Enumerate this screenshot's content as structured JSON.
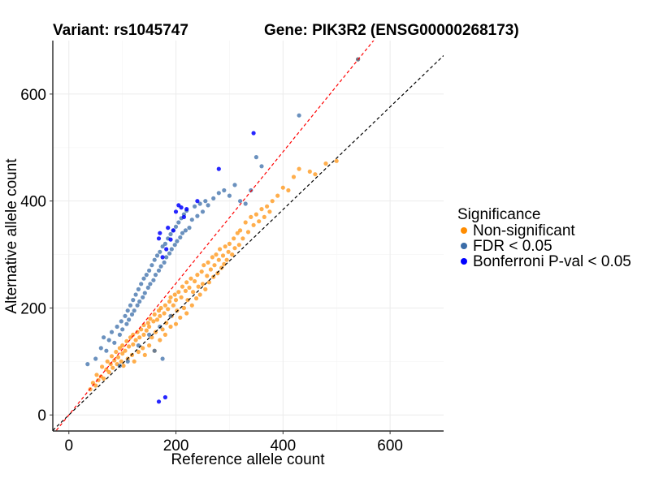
{
  "header": {
    "variant": "Variant: rs1045747",
    "gene": "Gene: PIK3R2 (ENSG00000268173)"
  },
  "chart_data": {
    "type": "scatter",
    "title": "Variant: rs1045747",
    "subtitle": "Gene: PIK3R2 (ENSG00000268173)",
    "xlabel": "Reference allele count",
    "ylabel": "Alternative allele count",
    "xlim": [
      -30,
      700
    ],
    "ylim": [
      -30,
      700
    ],
    "x_ticks": [
      0,
      200,
      400,
      600
    ],
    "y_ticks": [
      0,
      200,
      400,
      600
    ],
    "grid": true,
    "legend_position": "right",
    "legend_title": "Significance",
    "reference_lines": [
      {
        "style": "dashed",
        "color": "#000000",
        "slope": 0.96,
        "intercept": 0
      },
      {
        "style": "dashed",
        "color": "#ff0000",
        "slope": 1.23,
        "intercept": 0
      }
    ],
    "series": [
      {
        "name": "Non-significant",
        "color": "#ff8c00",
        "opacity": 0.7,
        "approx_count": 1400,
        "points_note_free": true,
        "points": [
          [
            40,
            48
          ],
          [
            45,
            60
          ],
          [
            50,
            55
          ],
          [
            52,
            75
          ],
          [
            55,
            65
          ],
          [
            60,
            72
          ],
          [
            62,
            90
          ],
          [
            65,
            68
          ],
          [
            70,
            85
          ],
          [
            72,
            100
          ],
          [
            75,
            80
          ],
          [
            78,
            95
          ],
          [
            80,
            110
          ],
          [
            82,
            88
          ],
          [
            85,
            102
          ],
          [
            88,
            118
          ],
          [
            90,
            95
          ],
          [
            92,
            108
          ],
          [
            95,
            125
          ],
          [
            98,
            100
          ],
          [
            100,
            115
          ],
          [
            100,
            130
          ],
          [
            102,
            92
          ],
          [
            105,
            120
          ],
          [
            108,
            138
          ],
          [
            110,
            105
          ],
          [
            112,
            128
          ],
          [
            115,
            145
          ],
          [
            118,
            112
          ],
          [
            120,
            132
          ],
          [
            120,
            150
          ],
          [
            122,
            100
          ],
          [
            125,
            140
          ],
          [
            128,
            155
          ],
          [
            130,
            118
          ],
          [
            132,
            145
          ],
          [
            135,
            160
          ],
          [
            138,
            125
          ],
          [
            140,
            150
          ],
          [
            140,
            168
          ],
          [
            142,
            112
          ],
          [
            145,
            158
          ],
          [
            148,
            172
          ],
          [
            150,
            130
          ],
          [
            150,
            165
          ],
          [
            152,
            180
          ],
          [
            155,
            145
          ],
          [
            158,
            175
          ],
          [
            160,
            120
          ],
          [
            160,
            188
          ],
          [
            162,
            155
          ],
          [
            165,
            178
          ],
          [
            168,
            195
          ],
          [
            170,
            140
          ],
          [
            170,
            185
          ],
          [
            172,
            200
          ],
          [
            175,
            160
          ],
          [
            178,
            190
          ],
          [
            180,
            150
          ],
          [
            180,
            205
          ],
          [
            182,
            172
          ],
          [
            185,
            198
          ],
          [
            188,
            212
          ],
          [
            190,
            165
          ],
          [
            190,
            220
          ],
          [
            192,
            185
          ],
          [
            195,
            205
          ],
          [
            198,
            225
          ],
          [
            200,
            170
          ],
          [
            200,
            215
          ],
          [
            202,
            195
          ],
          [
            205,
            230
          ],
          [
            208,
            182
          ],
          [
            210,
            220
          ],
          [
            212,
            240
          ],
          [
            215,
            200
          ],
          [
            218,
            232
          ],
          [
            220,
            190
          ],
          [
            220,
            248
          ],
          [
            222,
            215
          ],
          [
            225,
            238
          ],
          [
            228,
            255
          ],
          [
            230,
            205
          ],
          [
            232,
            230
          ],
          [
            235,
            250
          ],
          [
            238,
            218
          ],
          [
            240,
            262
          ],
          [
            242,
            240
          ],
          [
            245,
            225
          ],
          [
            248,
            268
          ],
          [
            250,
            245
          ],
          [
            252,
            280
          ],
          [
            255,
            235
          ],
          [
            258,
            260
          ],
          [
            260,
            285
          ],
          [
            262,
            248
          ],
          [
            265,
            272
          ],
          [
            268,
            295
          ],
          [
            270,
            258
          ],
          [
            272,
            280
          ],
          [
            275,
            300
          ],
          [
            278,
            265
          ],
          [
            280,
            290
          ],
          [
            282,
            310
          ],
          [
            285,
            275
          ],
          [
            288,
            298
          ],
          [
            290,
            282
          ],
          [
            292,
            315
          ],
          [
            295,
            290
          ],
          [
            298,
            305
          ],
          [
            300,
            320
          ],
          [
            305,
            300
          ],
          [
            308,
            330
          ],
          [
            310,
            312
          ],
          [
            315,
            340
          ],
          [
            318,
            318
          ],
          [
            320,
            345
          ],
          [
            325,
            330
          ],
          [
            330,
            360
          ],
          [
            335,
            342
          ],
          [
            340,
            370
          ],
          [
            345,
            355
          ],
          [
            350,
            375
          ],
          [
            355,
            362
          ],
          [
            360,
            385
          ],
          [
            365,
            370
          ],
          [
            370,
            390
          ],
          [
            375,
            380
          ],
          [
            380,
            400
          ],
          [
            390,
            410
          ],
          [
            400,
            425
          ],
          [
            410,
            420
          ],
          [
            420,
            445
          ],
          [
            430,
            460
          ],
          [
            450,
            455
          ],
          [
            460,
            450
          ],
          [
            480,
            470
          ],
          [
            500,
            475
          ],
          [
            540,
            665
          ]
        ]
      },
      {
        "name": "FDR < 0.05",
        "color": "#3a6ca8",
        "opacity": 0.75,
        "approx_count": 700,
        "points": [
          [
            35,
            95
          ],
          [
            50,
            105
          ],
          [
            60,
            125
          ],
          [
            65,
            145
          ],
          [
            70,
            120
          ],
          [
            75,
            140
          ],
          [
            80,
            155
          ],
          [
            85,
            135
          ],
          [
            90,
            165
          ],
          [
            95,
            150
          ],
          [
            98,
            175
          ],
          [
            100,
            160
          ],
          [
            105,
            185
          ],
          [
            108,
            170
          ],
          [
            110,
            195
          ],
          [
            112,
            178
          ],
          [
            115,
            205
          ],
          [
            118,
            188
          ],
          [
            120,
            215
          ],
          [
            122,
            195
          ],
          [
            125,
            225
          ],
          [
            128,
            205
          ],
          [
            130,
            235
          ],
          [
            132,
            212
          ],
          [
            135,
            245
          ],
          [
            138,
            220
          ],
          [
            140,
            255
          ],
          [
            142,
            228
          ],
          [
            145,
            262
          ],
          [
            148,
            238
          ],
          [
            150,
            270
          ],
          [
            152,
            245
          ],
          [
            155,
            280
          ],
          [
            158,
            252
          ],
          [
            160,
            290
          ],
          [
            162,
            262
          ],
          [
            165,
            298
          ],
          [
            168,
            270
          ],
          [
            170,
            305
          ],
          [
            172,
            278
          ],
          [
            175,
            315
          ],
          [
            178,
            285
          ],
          [
            180,
            320
          ],
          [
            182,
            295
          ],
          [
            185,
            330
          ],
          [
            188,
            302
          ],
          [
            190,
            338
          ],
          [
            192,
            310
          ],
          [
            195,
            345
          ],
          [
            198,
            318
          ],
          [
            200,
            352
          ],
          [
            202,
            325
          ],
          [
            205,
            360
          ],
          [
            208,
            332
          ],
          [
            210,
            368
          ],
          [
            212,
            340
          ],
          [
            215,
            375
          ],
          [
            218,
            345
          ],
          [
            220,
            382
          ],
          [
            225,
            350
          ],
          [
            230,
            365
          ],
          [
            235,
            390
          ],
          [
            240,
            372
          ],
          [
            245,
            395
          ],
          [
            250,
            380
          ],
          [
            255,
            400
          ],
          [
            260,
            392
          ],
          [
            270,
            405
          ],
          [
            280,
            415
          ],
          [
            290,
            420
          ],
          [
            300,
            410
          ],
          [
            310,
            430
          ],
          [
            320,
            400
          ],
          [
            330,
            395
          ],
          [
            340,
            420
          ],
          [
            350,
            482
          ],
          [
            360,
            465
          ],
          [
            430,
            560
          ],
          [
            540,
            665
          ],
          [
            160,
            120
          ],
          [
            175,
            105
          ],
          [
            95,
            92
          ],
          [
            110,
            100
          ],
          [
            130,
            130
          ],
          [
            150,
            150
          ],
          [
            170,
            165
          ],
          [
            190,
            185
          ]
        ]
      },
      {
        "name": "Bonferroni P-val < 0.05",
        "color": "#0000ff",
        "opacity": 0.85,
        "approx_count": 20,
        "points": [
          [
            168,
            25
          ],
          [
            180,
            33
          ],
          [
            168,
            330
          ],
          [
            170,
            340
          ],
          [
            175,
            295
          ],
          [
            182,
            310
          ],
          [
            185,
            350
          ],
          [
            190,
            328
          ],
          [
            195,
            345
          ],
          [
            200,
            380
          ],
          [
            205,
            392
          ],
          [
            210,
            388
          ],
          [
            215,
            370
          ],
          [
            220,
            385
          ],
          [
            240,
            400
          ],
          [
            280,
            460
          ],
          [
            345,
            527
          ]
        ]
      }
    ]
  }
}
